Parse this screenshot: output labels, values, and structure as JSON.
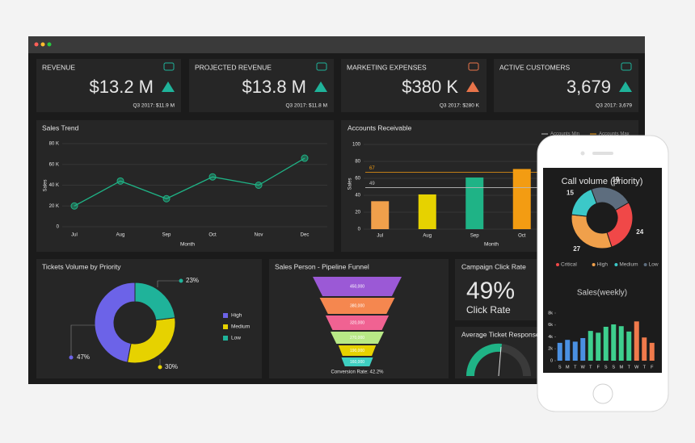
{
  "kpis": [
    {
      "title": "REVENUE",
      "value": "$13.2 M",
      "comparison": "Q3 2017: $11.9 M",
      "color": "#1fb39a"
    },
    {
      "title": "PROJECTED REVENUE",
      "value": "$13.8 M",
      "comparison": "Q3 2017: $11.8 M",
      "color": "#1fb39a"
    },
    {
      "title": "MARKETING EXPENSES",
      "value": "$380 K",
      "comparison": "Q3 2017: $280 K",
      "color": "#e8744a"
    },
    {
      "title": "ACTIVE CUSTOMERS",
      "value": "3,679",
      "comparison": "Q3 2017: 3,679",
      "color": "#1fb39a"
    }
  ],
  "chart_data": [
    {
      "type": "line",
      "title": "Sales Trend",
      "x_label": "Month",
      "y_label": "Sales",
      "categories": [
        "Jul",
        "Aug",
        "Sep",
        "Oct",
        "Nov",
        "Dec"
      ],
      "values": [
        20000,
        44000,
        27000,
        48000,
        40000,
        66000
      ],
      "color": "#1fb386",
      "ylim": [
        0,
        80000
      ],
      "yticks": [
        0,
        {
          "value": 20000,
          "label": "20 K"
        },
        {
          "value": 40000,
          "label": "40 K"
        },
        {
          "value": 60000,
          "label": "60 K"
        },
        {
          "value": 80000,
          "label": "80 K"
        }
      ],
      "grid": true
    },
    {
      "type": "bar",
      "title": "Accounts Receivable",
      "x_label": "Month",
      "y_label": "Sales",
      "categories": [
        "Jul",
        "Aug",
        "Sep",
        "Oct"
      ],
      "values": [
        33,
        41,
        61,
        71
      ],
      "colors": [
        "#f0a04b",
        "#e6d200",
        "#1fb386",
        "#f39c12"
      ],
      "ylim": [
        0,
        100
      ],
      "yticks": [
        0,
        20,
        40,
        60,
        80,
        100
      ],
      "grid": true,
      "reference_lines": [
        {
          "name": "Accounts Min",
          "value": 49,
          "color": "#bbbbbb"
        },
        {
          "name": "Accounts Max",
          "value": 67,
          "color": "#f39c12"
        }
      ]
    },
    {
      "type": "donut",
      "title": "Tickets Volume by Priority",
      "categories": [
        "High",
        "Medium",
        "Low"
      ],
      "values": [
        47,
        30,
        23
      ],
      "value_labels": [
        "47%",
        "30%",
        "23%"
      ],
      "colors": [
        "#6c63e8",
        "#e6d200",
        "#1fb39a"
      ]
    },
    {
      "type": "funnel",
      "title": "Sales Person - Pipeline Funnel",
      "values": [
        450000,
        380000,
        320000,
        270000,
        190000,
        160000
      ],
      "value_labels": [
        "450,000",
        "380,000",
        "320,000",
        "270,000",
        "190,000",
        "160,000"
      ],
      "colors": [
        "#9b59d6",
        "#f5874f",
        "#f06292",
        "#b8e986",
        "#e6d200",
        "#3ecfc1"
      ],
      "footnote": "Conversion Rate: 42.2%"
    },
    {
      "type": "donut",
      "title": "Call volume (priority)",
      "categories": [
        "Critical",
        "High",
        "Medium",
        "Low"
      ],
      "values": [
        24,
        27,
        15,
        19
      ],
      "colors": [
        "#f04848",
        "#f0a04b",
        "#3cc8c8",
        "#5d6d7e"
      ]
    },
    {
      "type": "bar",
      "title": "Sales(weekly)",
      "categories": [
        "S",
        "M",
        "T",
        "W",
        "T",
        "F",
        "S",
        "S",
        "M",
        "T",
        "W",
        "T",
        "F"
      ],
      "values": [
        3000,
        3500,
        3200,
        3800,
        5000,
        4700,
        5700,
        6100,
        5800,
        4900,
        6600,
        3900,
        3000
      ],
      "colors": [
        "#4a90e2",
        "#4a90e2",
        "#4a90e2",
        "#4a90e2",
        "#3ecf8e",
        "#3ecf8e",
        "#3ecf8e",
        "#3ecf8e",
        "#3ecf8e",
        "#3ecf8e",
        "#f07a4b",
        "#f07a4b",
        "#f07a4b"
      ],
      "ylim": [
        0,
        8000
      ],
      "yticks": [
        0,
        {
          "value": 2000,
          "label": "2k"
        },
        {
          "value": 4000,
          "label": "4k"
        },
        {
          "value": 6000,
          "label": "6k"
        },
        {
          "value": 8000,
          "label": "8k"
        }
      ]
    }
  ],
  "campaign": {
    "title": "Campaign Click Rate",
    "value": "49%",
    "label": "Click Rate"
  },
  "ticket_response": {
    "title": "Average Ticket Response"
  }
}
